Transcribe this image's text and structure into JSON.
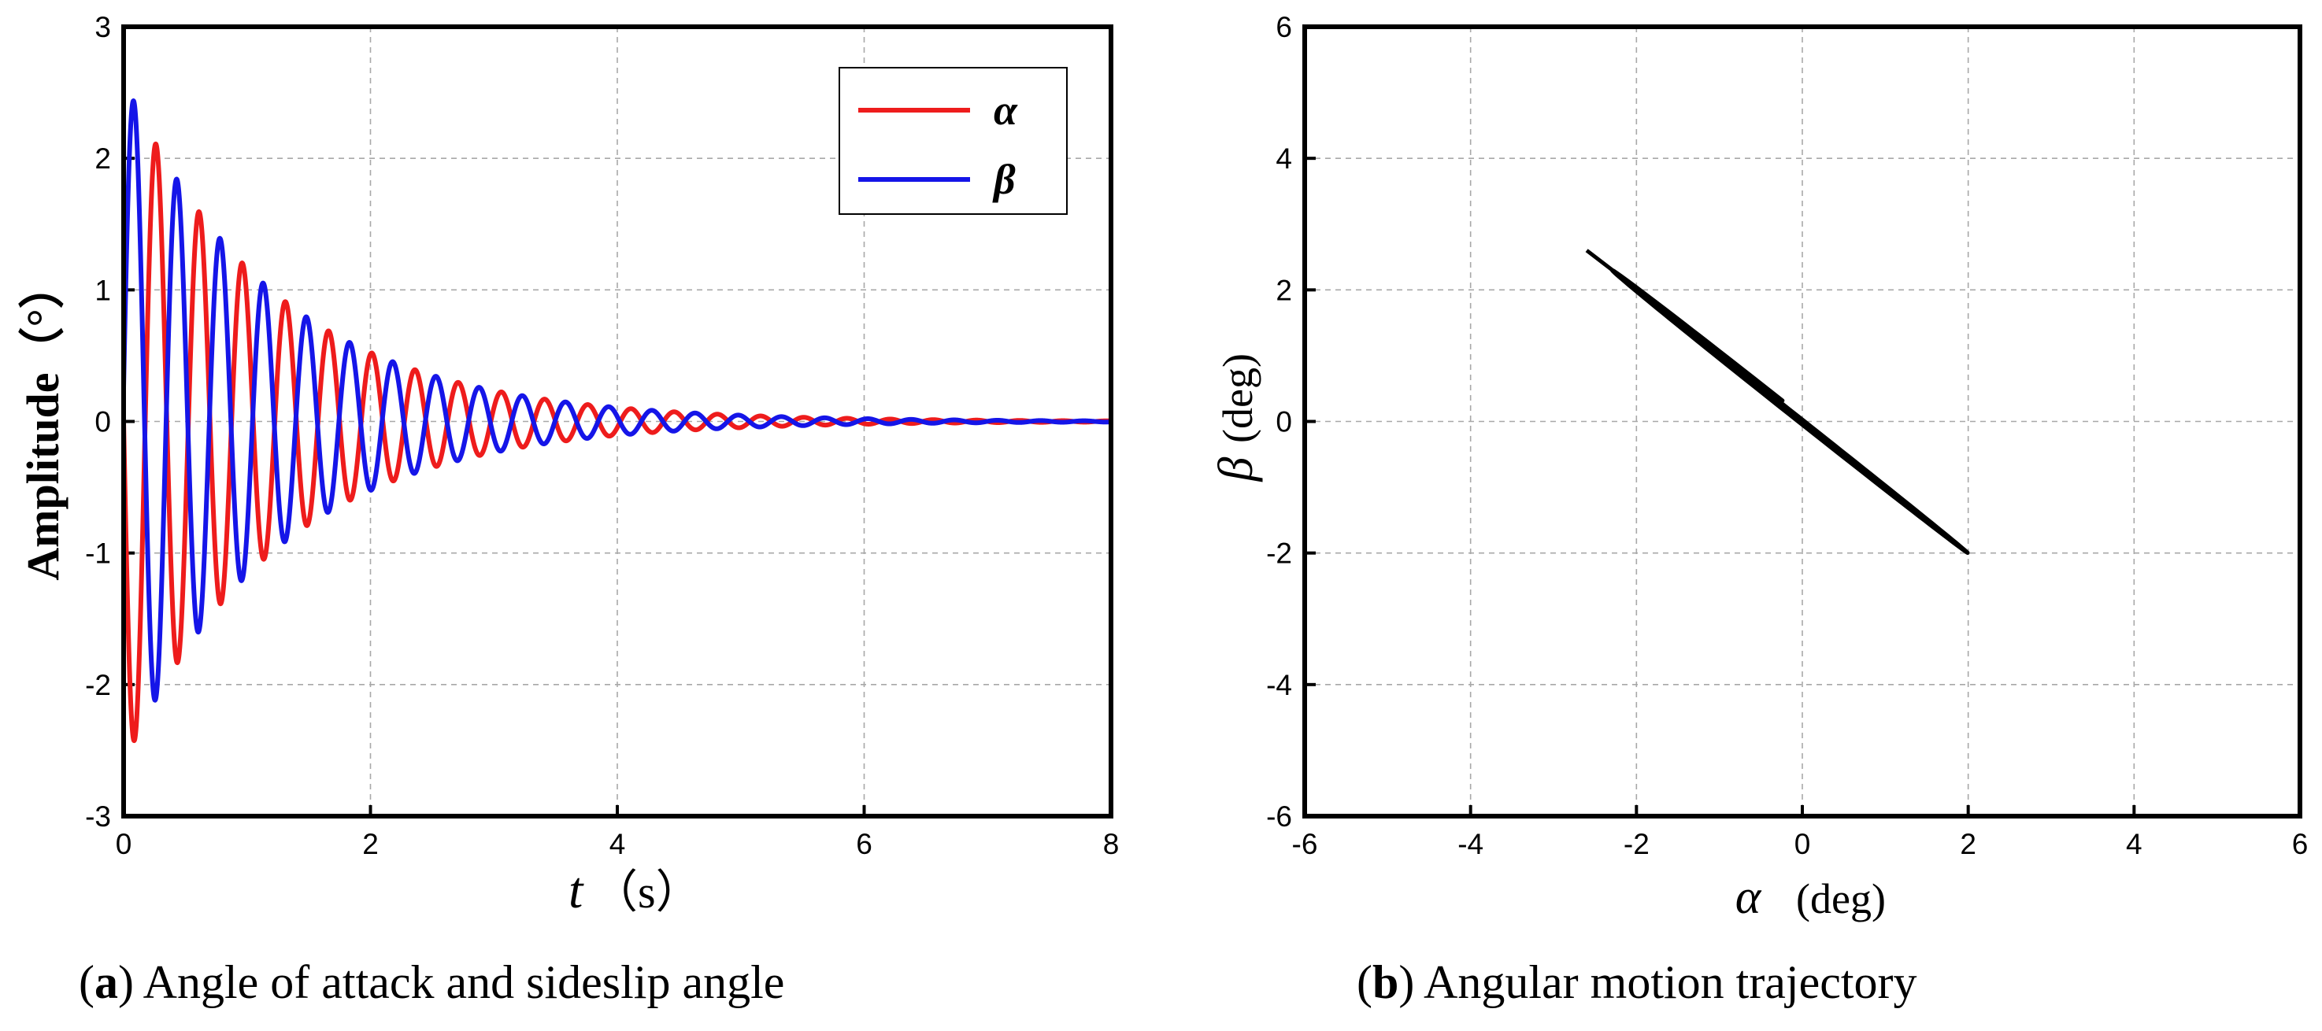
{
  "chart_data": [
    {
      "type": "line",
      "panel_label": "a",
      "caption": "Angle of attack and sideslip angle",
      "title": "",
      "xlabel_symbol": "t",
      "xlabel_unit": "（s）",
      "ylabel": "Amplitude（°）",
      "xlim": [
        0,
        8
      ],
      "ylim": [
        -3,
        3
      ],
      "xticks": [
        0,
        2,
        4,
        6,
        8
      ],
      "yticks": [
        -3,
        -2,
        -1,
        0,
        1,
        2,
        3
      ],
      "grid": true,
      "legend_position": "top-right",
      "series": [
        {
          "name": "α",
          "color": "#ee1c1c",
          "amplitude": 2.6,
          "decay_time_constant": 1.25,
          "period_s": 0.35,
          "phase": "-sin"
        },
        {
          "name": "β",
          "color": "#1515e8",
          "amplitude": 2.6,
          "decay_time_constant": 1.25,
          "period_s": 0.35,
          "phase": "sin(t+0.1)"
        }
      ],
      "sample_peaks": {
        "x": [
          0.08,
          0.26,
          0.43,
          0.61,
          0.78,
          0.96,
          1.13,
          1.31,
          1.48,
          1.66,
          1.83,
          2.01,
          2.18,
          2.36,
          2.53,
          2.71,
          2.88
        ],
        "alpha": [
          -2.6,
          2.3,
          -1.95,
          1.7,
          -1.5,
          1.35,
          -1.15,
          1.0,
          -0.9,
          0.78,
          -0.7,
          0.58,
          -0.52,
          0.45,
          -0.38,
          0.36,
          -0.3
        ],
        "beta": [
          2.6,
          -2.15,
          1.82,
          -1.6,
          1.25,
          -1.25,
          0.88,
          -0.72,
          0.62,
          -0.58,
          0.46,
          -0.45,
          0.34,
          -0.3,
          0.28,
          -0.25,
          0.22
        ]
      }
    },
    {
      "type": "line",
      "panel_label": "b",
      "caption": "Angular motion trajectory",
      "title": "",
      "xlabel_symbol": "α",
      "xlabel_unit": "(deg)",
      "ylabel_symbol": "β",
      "ylabel_unit": "(deg)",
      "xlim": [
        -6,
        6
      ],
      "ylim": [
        -6,
        6
      ],
      "xticks": [
        -6,
        -4,
        -2,
        0,
        2,
        4,
        6
      ],
      "yticks": [
        -6,
        -4,
        -2,
        0,
        2,
        4,
        6
      ],
      "grid": true,
      "series": [
        {
          "name": "trajectory",
          "color": "#000000",
          "start": [
            -2.6,
            2.6
          ],
          "extreme": [
            2.3,
            -2.15
          ]
        }
      ]
    }
  ]
}
